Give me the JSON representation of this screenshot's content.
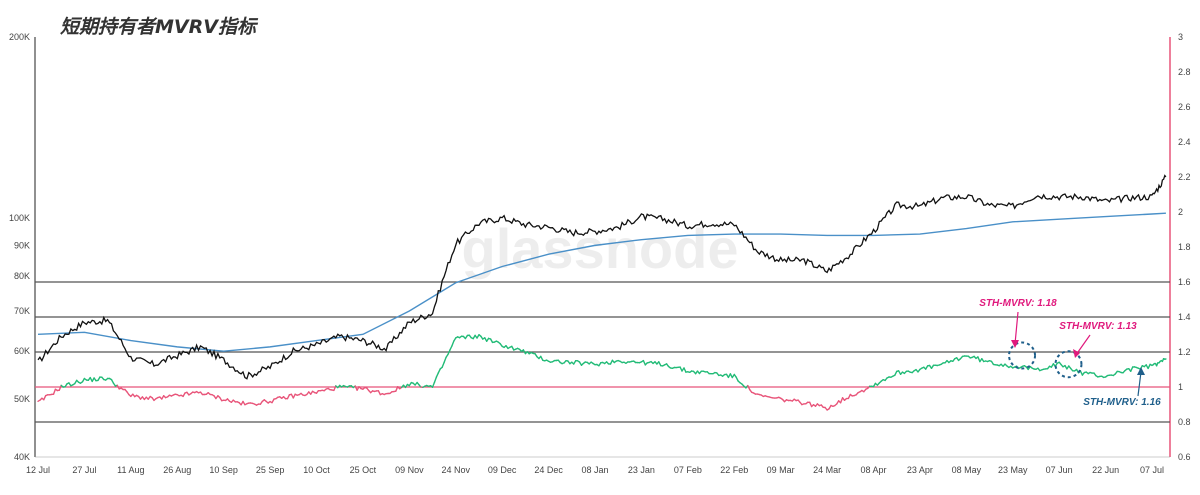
{
  "chart_data": {
    "type": "line",
    "title": "短期持有者MVRV指标",
    "watermark": "glassnode",
    "x_ticks": [
      "12 Jul",
      "27 Jul",
      "11 Aug",
      "26 Aug",
      "10 Sep",
      "25 Sep",
      "10 Oct",
      "25 Oct",
      "09 Nov",
      "24 Nov",
      "09 Dec",
      "24 Dec",
      "08 Jan",
      "23 Jan",
      "07 Feb",
      "22 Feb",
      "09 Mar",
      "24 Mar",
      "08 Apr",
      "23 Apr",
      "08 May",
      "23 May",
      "07 Jun",
      "22 Jun",
      "07 Jul"
    ],
    "y_left": {
      "scale": "log",
      "ticks": [
        "40K",
        "50K",
        "60K",
        "70K",
        "80K",
        "90K",
        "100K",
        "200K"
      ],
      "ylim": [
        40000,
        200000
      ]
    },
    "y_right": {
      "ticks": [
        "0.6",
        "0.8",
        "1",
        "1.2",
        "1.4",
        "1.6",
        "1.8",
        "2",
        "2.2",
        "2.4",
        "2.6",
        "2.8",
        "3"
      ],
      "ylim": [
        0.6,
        3.0
      ]
    },
    "horizontal_lines": [
      0.8,
      1.0,
      1.2,
      1.4,
      1.6
    ],
    "colors": {
      "price": "#111111",
      "realized_price": "#4a90c8",
      "mvrv_above": "#22bb77",
      "mvrv_below": "#e8557a",
      "baseline": "#e8557a",
      "ref_lines": "#555555",
      "right_axis": "#e8557a"
    },
    "series": [
      {
        "role": "price",
        "x_index": [
          0,
          0.5,
          1,
          1.5,
          2,
          2.5,
          3,
          3.5,
          4,
          4.5,
          5,
          5.5,
          6,
          6.5,
          7,
          7.5,
          8,
          8.5,
          9,
          9.5,
          10,
          10.5,
          11,
          11.5,
          12,
          12.5,
          13,
          13.5,
          14,
          14.5,
          15,
          15.5,
          16,
          16.5,
          17,
          17.5,
          18,
          18.5,
          19,
          19.5,
          20,
          20.5,
          21,
          21.5,
          22,
          22.5,
          23,
          23.5,
          24,
          24.3
        ],
        "values": [
          57500,
          63500,
          67000,
          67500,
          58500,
          57000,
          59000,
          61000,
          58000,
          54500,
          56500,
          60000,
          61500,
          63500,
          62500,
          60500,
          67000,
          69500,
          90500,
          98000,
          100000,
          97500,
          96500,
          94500,
          95000,
          96500,
          100500,
          99500,
          97000,
          98000,
          97500,
          88000,
          85000,
          85000,
          81500,
          87000,
          95000,
          105000,
          104500,
          108000,
          108500,
          105000,
          104500,
          109000,
          108500,
          108500,
          106500,
          108000,
          108500,
          117000
        ]
      },
      {
        "role": "realized_price",
        "x_index": [
          0,
          1,
          2,
          3,
          4,
          5,
          6,
          7,
          8,
          9,
          10,
          11,
          12,
          13,
          14,
          15,
          16,
          17,
          18,
          19,
          20,
          21,
          22,
          23,
          24,
          24.3
        ],
        "values": [
          64000,
          64500,
          62500,
          61000,
          60000,
          61000,
          62500,
          64000,
          70000,
          78000,
          83000,
          87000,
          90000,
          92000,
          93500,
          94000,
          94000,
          93500,
          93500,
          94000,
          96000,
          98500,
          99500,
          100500,
          101500,
          101800
        ]
      },
      {
        "role": "sth_mvrv",
        "x_index": [
          0,
          0.5,
          1,
          1.5,
          2,
          2.5,
          3,
          3.5,
          4,
          4.5,
          5,
          5.5,
          6,
          6.5,
          7,
          7.5,
          8,
          8.5,
          9,
          9.5,
          10,
          10.5,
          11,
          11.5,
          12,
          12.5,
          13,
          13.5,
          14,
          14.5,
          15,
          15.5,
          16,
          16.5,
          17,
          17.5,
          18,
          18.5,
          19,
          19.5,
          20,
          20.5,
          21,
          21.5,
          22,
          22.5,
          23,
          23.5,
          24,
          24.3
        ],
        "values": [
          0.91,
          1.0,
          1.04,
          1.05,
          0.95,
          0.93,
          0.95,
          0.97,
          0.93,
          0.9,
          0.92,
          0.95,
          0.97,
          1.0,
          0.99,
          0.96,
          1.02,
          1.0,
          1.28,
          1.29,
          1.24,
          1.2,
          1.15,
          1.14,
          1.13,
          1.15,
          1.14,
          1.13,
          1.09,
          1.08,
          1.06,
          0.95,
          0.93,
          0.91,
          0.88,
          0.95,
          1.01,
          1.08,
          1.1,
          1.13,
          1.18,
          1.14,
          1.12,
          1.1,
          1.13,
          1.08,
          1.06,
          1.1,
          1.12,
          1.16
        ]
      }
    ],
    "annotations": [
      {
        "text": "STH-MVRV: 1.18",
        "x": 21.2,
        "y": 1.18,
        "color": "#e0197d"
      },
      {
        "text": "STH-MVRV: 1.13",
        "x": 22.2,
        "y": 1.13,
        "color": "#e0197d"
      },
      {
        "text": "STH-MVRV: 1.16",
        "x": 24.3,
        "y": 1.16,
        "color": "#1f5f8b"
      }
    ]
  }
}
